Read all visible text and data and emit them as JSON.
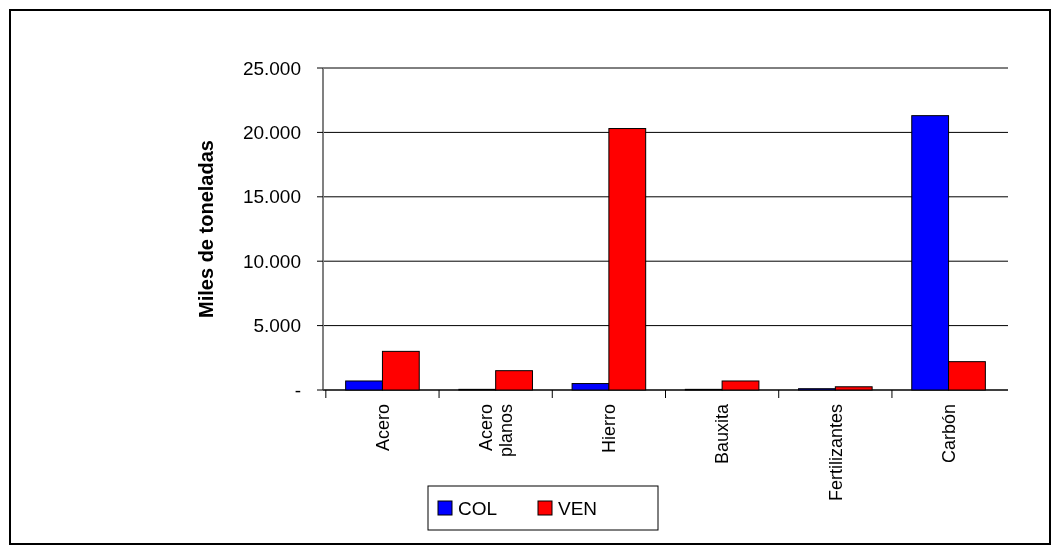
{
  "chart_data": {
    "type": "bar",
    "ylabel": "Miles de toneladas",
    "categories": [
      "Acero",
      "Acero planos",
      "Hierro",
      "Bauxita",
      "Fertilizantes",
      "Carbón"
    ],
    "series": [
      {
        "name": "COL",
        "color": "#0000ff",
        "values": [
          700,
          50,
          500,
          50,
          100,
          21300
        ]
      },
      {
        "name": "VEN",
        "color": "#ff0000",
        "values": [
          3000,
          1500,
          20300,
          700,
          250,
          2200
        ]
      }
    ],
    "ylim": [
      0,
      25000
    ],
    "yticks": [
      {
        "value": 0,
        "label": "-"
      },
      {
        "value": 5000,
        "label": "5.000"
      },
      {
        "value": 10000,
        "label": "10.000"
      },
      {
        "value": 15000,
        "label": "15.000"
      },
      {
        "value": 20000,
        "label": "20.000"
      },
      {
        "value": 25000,
        "label": "25.000"
      }
    ],
    "grid": "y",
    "legend": "bottom"
  }
}
